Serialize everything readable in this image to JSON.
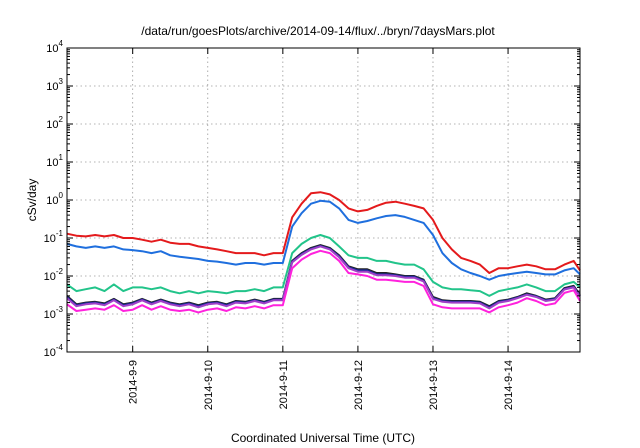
{
  "chart_data": {
    "type": "line",
    "title": "/data/run/goesPlots/archive/2014-09-14/flux/../bryn/7daysMars.plot",
    "xlabel": "Coordinated Universal Time (UTC)",
    "ylabel": "cSv/day",
    "yscale": "log",
    "ylim": [
      0.0001,
      10000
    ],
    "xlim": [
      "2014-09-08T03:00",
      "2014-09-14T23:00"
    ],
    "grid": true,
    "legend": "none",
    "y_ticks": [
      {
        "value": 0.0001,
        "base": "10",
        "exp": "-4"
      },
      {
        "value": 0.001,
        "base": "10",
        "exp": "-3"
      },
      {
        "value": 0.01,
        "base": "10",
        "exp": "-2"
      },
      {
        "value": 0.1,
        "base": "10",
        "exp": "-1"
      },
      {
        "value": 1,
        "base": "10",
        "exp": "0"
      },
      {
        "value": 10,
        "base": "10",
        "exp": "1"
      },
      {
        "value": 100,
        "base": "10",
        "exp": "2"
      },
      {
        "value": 1000,
        "base": "10",
        "exp": "3"
      },
      {
        "value": 10000,
        "base": "10",
        "exp": "4"
      }
    ],
    "x_ticks": [
      {
        "value": "2014-09-09T00:00",
        "label": "2014-9-9"
      },
      {
        "value": "2014-09-10T00:00",
        "label": "2014-9-10"
      },
      {
        "value": "2014-09-11T00:00",
        "label": "2014-9-11"
      },
      {
        "value": "2014-09-12T00:00",
        "label": "2014-9-12"
      },
      {
        "value": "2014-09-13T00:00",
        "label": "2014-9-13"
      },
      {
        "value": "2014-09-14T00:00",
        "label": "2014-9-14"
      }
    ],
    "x": [
      "2014-09-08T03:00",
      "2014-09-08T06:00",
      "2014-09-08T09:00",
      "2014-09-08T12:00",
      "2014-09-08T15:00",
      "2014-09-08T18:00",
      "2014-09-08T21:00",
      "2014-09-09T00:00",
      "2014-09-09T03:00",
      "2014-09-09T06:00",
      "2014-09-09T09:00",
      "2014-09-09T12:00",
      "2014-09-09T15:00",
      "2014-09-09T18:00",
      "2014-09-09T21:00",
      "2014-09-10T00:00",
      "2014-09-10T03:00",
      "2014-09-10T06:00",
      "2014-09-10T09:00",
      "2014-09-10T12:00",
      "2014-09-10T15:00",
      "2014-09-10T18:00",
      "2014-09-10T21:00",
      "2014-09-11T00:00",
      "2014-09-11T03:00",
      "2014-09-11T06:00",
      "2014-09-11T09:00",
      "2014-09-11T12:00",
      "2014-09-11T15:00",
      "2014-09-11T18:00",
      "2014-09-11T21:00",
      "2014-09-12T00:00",
      "2014-09-12T03:00",
      "2014-09-12T06:00",
      "2014-09-12T09:00",
      "2014-09-12T12:00",
      "2014-09-12T15:00",
      "2014-09-12T18:00",
      "2014-09-12T21:00",
      "2014-09-13T00:00",
      "2014-09-13T03:00",
      "2014-09-13T06:00",
      "2014-09-13T09:00",
      "2014-09-13T12:00",
      "2014-09-13T15:00",
      "2014-09-13T18:00",
      "2014-09-13T21:00",
      "2014-09-14T00:00",
      "2014-09-14T03:00",
      "2014-09-14T06:00",
      "2014-09-14T09:00",
      "2014-09-14T12:00",
      "2014-09-14T15:00",
      "2014-09-14T18:00",
      "2014-09-14T21:00",
      "2014-09-14T23:00"
    ],
    "series": [
      {
        "color": "#e41a1c",
        "values": [
          0.13,
          0.115,
          0.11,
          0.12,
          0.11,
          0.12,
          0.1,
          0.1,
          0.09,
          0.08,
          0.09,
          0.075,
          0.07,
          0.07,
          0.06,
          0.055,
          0.05,
          0.045,
          0.04,
          0.04,
          0.04,
          0.035,
          0.04,
          0.04,
          0.35,
          0.8,
          1.5,
          1.6,
          1.4,
          1.0,
          0.6,
          0.5,
          0.55,
          0.7,
          0.85,
          0.9,
          0.8,
          0.7,
          0.6,
          0.3,
          0.1,
          0.05,
          0.03,
          0.025,
          0.02,
          0.012,
          0.016,
          0.016,
          0.018,
          0.02,
          0.018,
          0.015,
          0.015,
          0.02,
          0.025,
          0.014
        ]
      },
      {
        "color": "#1f6fde",
        "values": [
          0.07,
          0.06,
          0.055,
          0.06,
          0.055,
          0.06,
          0.05,
          0.048,
          0.045,
          0.04,
          0.045,
          0.035,
          0.032,
          0.03,
          0.028,
          0.025,
          0.024,
          0.022,
          0.02,
          0.022,
          0.022,
          0.02,
          0.022,
          0.022,
          0.2,
          0.45,
          0.8,
          0.95,
          0.9,
          0.6,
          0.3,
          0.25,
          0.28,
          0.33,
          0.38,
          0.4,
          0.36,
          0.3,
          0.25,
          0.12,
          0.04,
          0.022,
          0.015,
          0.012,
          0.01,
          0.008,
          0.01,
          0.011,
          0.012,
          0.013,
          0.012,
          0.011,
          0.011,
          0.014,
          0.016,
          0.011
        ]
      },
      {
        "color": "#22c48a",
        "values": [
          0.006,
          0.004,
          0.0045,
          0.005,
          0.004,
          0.006,
          0.004,
          0.005,
          0.005,
          0.0045,
          0.005,
          0.004,
          0.0035,
          0.004,
          0.0035,
          0.004,
          0.0038,
          0.0035,
          0.004,
          0.004,
          0.0045,
          0.004,
          0.005,
          0.005,
          0.04,
          0.07,
          0.1,
          0.12,
          0.1,
          0.06,
          0.035,
          0.03,
          0.03,
          0.025,
          0.025,
          0.022,
          0.02,
          0.02,
          0.015,
          0.007,
          0.005,
          0.0045,
          0.0045,
          0.0042,
          0.004,
          0.003,
          0.004,
          0.0045,
          0.005,
          0.006,
          0.005,
          0.004,
          0.004,
          0.006,
          0.007,
          0.005
        ]
      },
      {
        "color": "#222222",
        "values": [
          0.003,
          0.0018,
          0.002,
          0.0021,
          0.0019,
          0.0025,
          0.0018,
          0.002,
          0.0025,
          0.002,
          0.0024,
          0.002,
          0.0018,
          0.002,
          0.0017,
          0.002,
          0.0021,
          0.0018,
          0.0022,
          0.0021,
          0.0024,
          0.0021,
          0.0025,
          0.0025,
          0.025,
          0.04,
          0.055,
          0.065,
          0.055,
          0.035,
          0.018,
          0.015,
          0.015,
          0.012,
          0.012,
          0.011,
          0.01,
          0.01,
          0.008,
          0.0028,
          0.0023,
          0.0022,
          0.0022,
          0.0022,
          0.0021,
          0.0016,
          0.0022,
          0.0024,
          0.0028,
          0.0035,
          0.003,
          0.0024,
          0.0026,
          0.0048,
          0.0055,
          0.0032
        ]
      },
      {
        "color": "#1a2a9a",
        "values": [
          0.0028,
          0.0017,
          0.0019,
          0.002,
          0.0018,
          0.0024,
          0.0017,
          0.0019,
          0.0024,
          0.0019,
          0.0023,
          0.0019,
          0.0017,
          0.0019,
          0.0016,
          0.0019,
          0.002,
          0.0017,
          0.0021,
          0.002,
          0.0023,
          0.002,
          0.0024,
          0.0024,
          0.024,
          0.038,
          0.052,
          0.062,
          0.052,
          0.033,
          0.017,
          0.014,
          0.014,
          0.011,
          0.011,
          0.0105,
          0.0095,
          0.0095,
          0.0076,
          0.0026,
          0.0022,
          0.0021,
          0.0021,
          0.0021,
          0.002,
          0.0015,
          0.0021,
          0.0023,
          0.0027,
          0.0033,
          0.0029,
          0.0023,
          0.0025,
          0.0046,
          0.0052,
          0.003
        ]
      },
      {
        "color": "#a040c8",
        "values": [
          0.0026,
          0.0016,
          0.0018,
          0.0019,
          0.0017,
          0.0023,
          0.0016,
          0.0018,
          0.0023,
          0.0018,
          0.0022,
          0.0018,
          0.0016,
          0.0018,
          0.0015,
          0.0018,
          0.0019,
          0.0016,
          0.002,
          0.0019,
          0.0022,
          0.0019,
          0.0023,
          0.0023,
          0.023,
          0.036,
          0.05,
          0.06,
          0.05,
          0.031,
          0.016,
          0.013,
          0.013,
          0.0105,
          0.0105,
          0.01,
          0.009,
          0.009,
          0.0072,
          0.0025,
          0.0021,
          0.002,
          0.002,
          0.002,
          0.0019,
          0.0014,
          0.002,
          0.0022,
          0.0026,
          0.0032,
          0.0028,
          0.0022,
          0.0024,
          0.0044,
          0.005,
          0.0029
        ]
      },
      {
        "color": "#ff22dd",
        "values": [
          0.0018,
          0.0012,
          0.0013,
          0.0014,
          0.0013,
          0.0017,
          0.0012,
          0.0013,
          0.0017,
          0.0013,
          0.0016,
          0.0013,
          0.0012,
          0.0013,
          0.0011,
          0.0013,
          0.0014,
          0.0012,
          0.0015,
          0.0014,
          0.0016,
          0.0014,
          0.0017,
          0.0017,
          0.016,
          0.027,
          0.038,
          0.046,
          0.04,
          0.025,
          0.012,
          0.011,
          0.01,
          0.008,
          0.008,
          0.0075,
          0.007,
          0.007,
          0.0055,
          0.0018,
          0.0015,
          0.0014,
          0.0014,
          0.0014,
          0.0014,
          0.0011,
          0.0015,
          0.0017,
          0.002,
          0.0026,
          0.0022,
          0.0017,
          0.0019,
          0.0036,
          0.0042,
          0.0022
        ]
      }
    ]
  }
}
